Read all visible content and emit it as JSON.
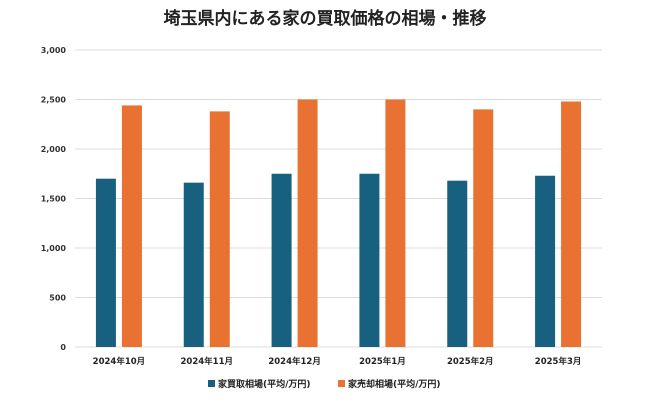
{
  "chart_data": {
    "type": "bar",
    "title": "埼玉県内にある家の買取価格の相場・推移",
    "categories": [
      "2024年10月",
      "2024年11月",
      "2024年12月",
      "2025年1月",
      "2025年2月",
      "2025年3月"
    ],
    "series": [
      {
        "name": "家買取相場(平均/万円)",
        "color": "#17607f",
        "values": [
          1700,
          1660,
          1750,
          1750,
          1680,
          1730
        ]
      },
      {
        "name": "家売却相場(平均/万円)",
        "color": "#e97132",
        "values": [
          2440,
          2380,
          2500,
          2500,
          2400,
          2480
        ]
      }
    ],
    "yticks": [
      "0",
      "500",
      "1,000",
      "1,500",
      "2,000",
      "2,500",
      "3,000"
    ],
    "ylim": [
      0,
      3000
    ],
    "grid": true,
    "legend_position": "bottom"
  }
}
